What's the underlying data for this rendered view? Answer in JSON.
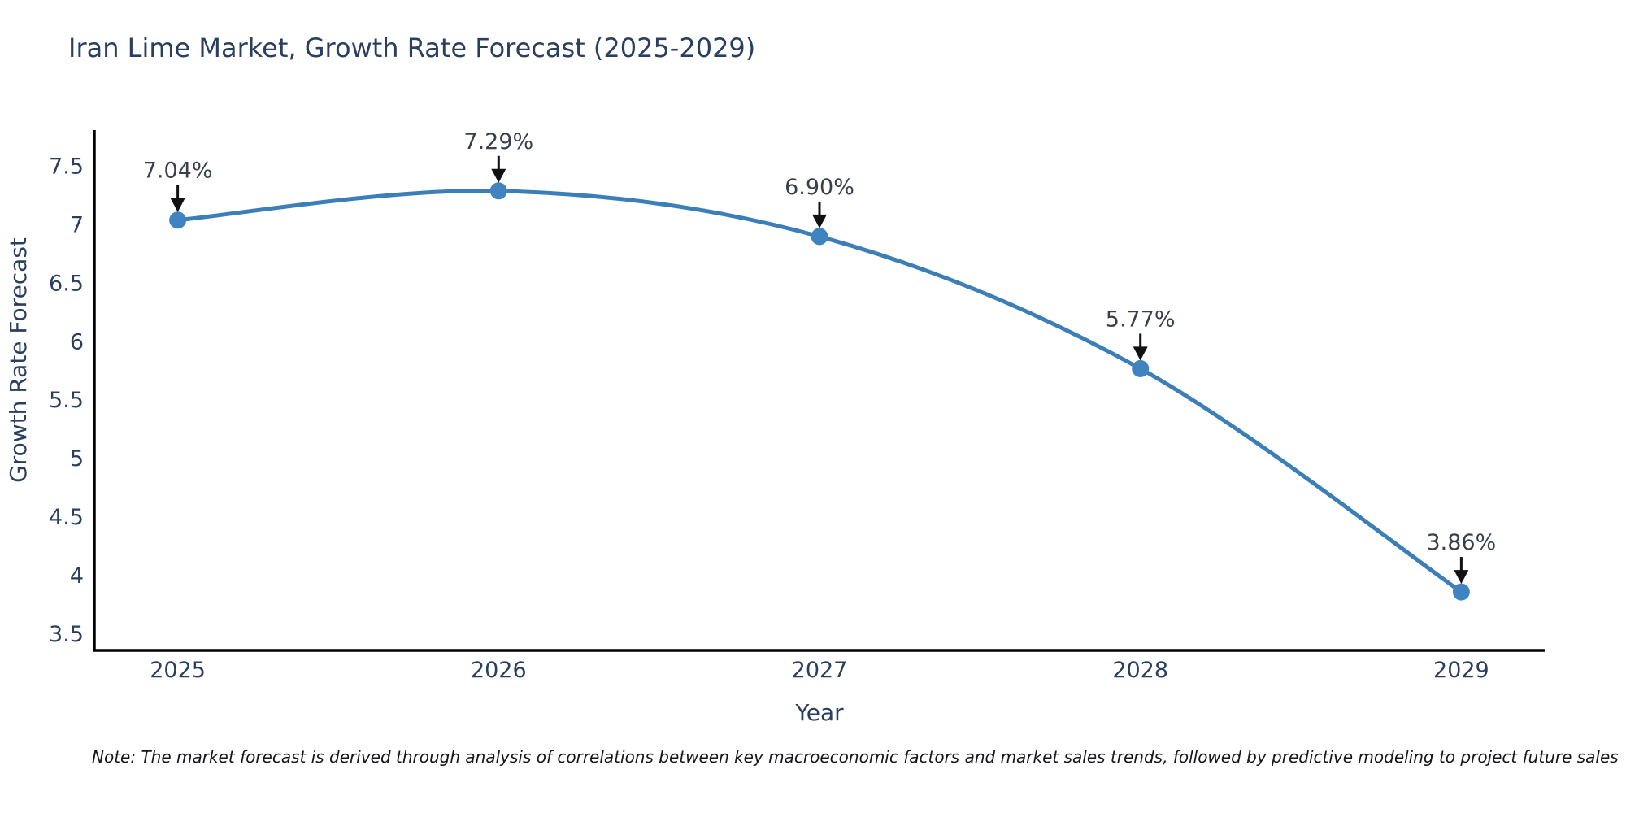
{
  "header": {
    "title": "Iran Lime Market, Growth Rate Forecast (2025-2029)"
  },
  "note": "Note: The market forecast is derived through analysis of correlations between key macroeconomic factors and market sales trends, followed by predictive modeling to project future sales",
  "chart_data": {
    "type": "line",
    "title": "Iran Lime Market, Growth Rate Forecast (2025-2029)",
    "xlabel": "Year",
    "ylabel": "Growth Rate Forecast",
    "x": [
      2025,
      2026,
      2027,
      2028,
      2029
    ],
    "values": [
      7.04,
      7.29,
      6.9,
      5.77,
      3.86
    ],
    "point_labels": [
      "7.04%",
      "7.29%",
      "6.90%",
      "5.77%",
      "3.86%"
    ],
    "x_tick_labels": [
      "2025",
      "2026",
      "2027",
      "2028",
      "2029"
    ],
    "x_tick_values": [
      2025,
      2026,
      2027,
      2028,
      2029
    ],
    "y_tick_labels": [
      "7.5",
      "7",
      "6.5",
      "6",
      "5.5",
      "5",
      "4.5",
      "4",
      "3.5"
    ],
    "y_tick_values": [
      7.5,
      7,
      6.5,
      6,
      5.5,
      5,
      4.5,
      4,
      3.5
    ],
    "xlim": [
      2024.74,
      2029.26
    ],
    "ylim": [
      3.36,
      7.81
    ],
    "grid": false,
    "legend": false,
    "smooth": true,
    "colors": {
      "line": "#3c7fb8",
      "marker": "#3f84c1",
      "axis": "#000000",
      "tick_text": "#2a3f5f",
      "axis_title_text": "#2a3f5f",
      "annotation_text": "#38404d",
      "arrow": "#111111"
    }
  }
}
